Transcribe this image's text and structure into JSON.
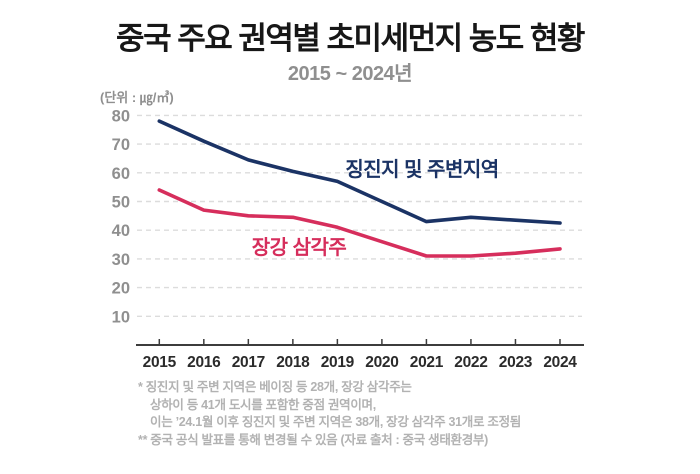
{
  "title": "중국 주요 권역별 초미세먼지 농도 현황",
  "subtitle": "2015 ~ 2024년",
  "unit_label": "(단위 : ㎍/㎥)",
  "colors": {
    "title": "#171717",
    "subtitle_gray": "#8f8f8f",
    "jingjinji_navy": "#1b3365",
    "yangtze_pink": "#d62e5c",
    "gridline": "#dcdcdc",
    "axis": "#3c3c3c",
    "footnote_gray": "#b2b2b2"
  },
  "chart_data": {
    "type": "line",
    "title": "중국 주요 권역별 초미세먼지 농도 현황",
    "subtitle": "2015 ~ 2024년",
    "ylabel": "(단위 : ㎍/㎥)",
    "x": [
      2015,
      2016,
      2017,
      2018,
      2019,
      2020,
      2021,
      2022,
      2023,
      2024
    ],
    "series": [
      {
        "name": "징진지 및 주변지역",
        "color": "#1b3365",
        "values": [
          78,
          71,
          64.5,
          60.5,
          57,
          50,
          43,
          44.5,
          43.5,
          42.5
        ]
      },
      {
        "name": "장강 삼각주",
        "color": "#d62e5c",
        "values": [
          54,
          47,
          45,
          44.5,
          41,
          36,
          31,
          31,
          32,
          33.5
        ]
      }
    ],
    "ylim": [
      0,
      80
    ],
    "yticks": [
      10,
      20,
      30,
      40,
      50,
      60,
      70,
      80
    ],
    "grid": "horizontal-dashed",
    "legend_position": "inline-labels-on-lines"
  },
  "footnotes": [
    "* 징진지 및 주변 지역은 베이징 등 28개, 장강 삼각주는",
    "상하이 등 41개 도시를 포함한 중점 권역이며,",
    "이는 ’24.1월 이후 징진지 및 주변 지역은 38개, 장강 삼각주 31개로 조정됨",
    "** 중국 공식 발표를 통해 변경될 수 있음 (자료 출처 : 중국 생태환경부)"
  ]
}
